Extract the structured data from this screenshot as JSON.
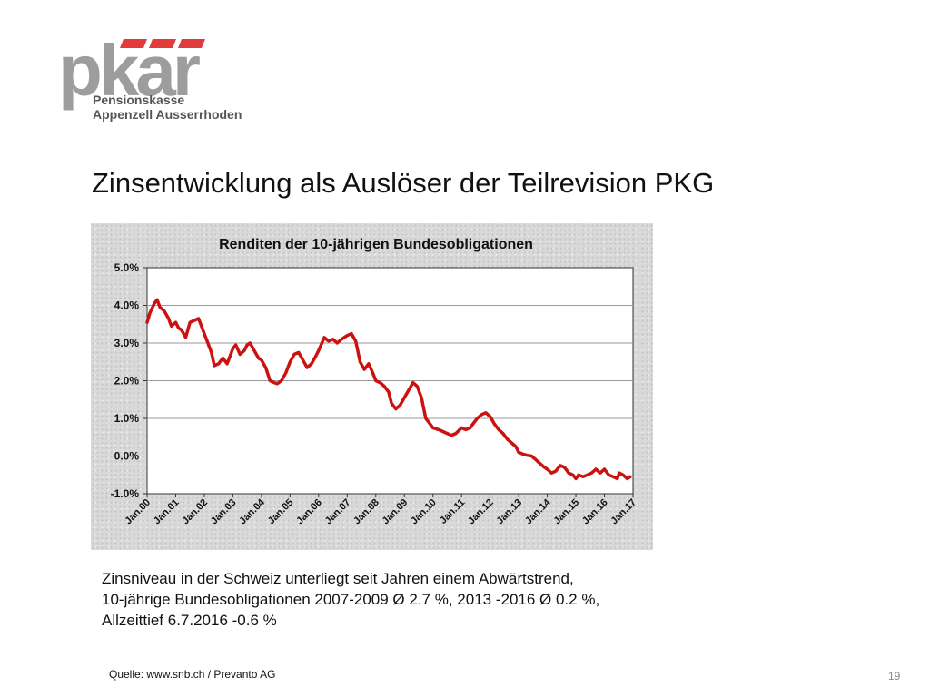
{
  "logo": {
    "wordmark": "pkar",
    "line1": "Pensionskasse",
    "line2": "Appenzell Ausserrhoden",
    "gray": "#9d9d9d",
    "red": "#e23b3b"
  },
  "slide_title": "Zinsentwicklung als Auslöser der Teilrevision PKG",
  "chart_data": {
    "type": "line",
    "title": "Renditen der 10-jährigen Bundesobligationen",
    "xlabel": "",
    "ylabel": "",
    "ylim": [
      -1.0,
      5.0
    ],
    "xlim": [
      2000,
      2017
    ],
    "yticks": [
      "5.0%",
      "4.0%",
      "3.0%",
      "2.0%",
      "1.0%",
      "0.0%",
      "-1.0%"
    ],
    "ytick_values": [
      5,
      4,
      3,
      2,
      1,
      0,
      -1
    ],
    "xticks": [
      "Jan.00",
      "Jan.01",
      "Jan.02",
      "Jan.03",
      "Jan.04",
      "Jan.05",
      "Jan.06",
      "Jan.07",
      "Jan.08",
      "Jan.09",
      "Jan.10",
      "Jan.11",
      "Jan.12",
      "Jan.13",
      "Jan.14",
      "Jan.15",
      "Jan.16",
      "Jan.17"
    ],
    "grid": true,
    "line_color": "#cc1111",
    "series": [
      {
        "x": [
          2000.0,
          2000.1,
          2000.25,
          2000.35,
          2000.45,
          2000.6,
          2000.75,
          2000.85,
          2001.0,
          2001.1,
          2001.2,
          2001.35,
          2001.5,
          2001.65,
          2001.8,
          2001.9,
          2002.0,
          2002.1,
          2002.25,
          2002.35,
          2002.5,
          2002.65,
          2002.8,
          2002.9,
          2003.0,
          2003.1,
          2003.25,
          2003.4,
          2003.5,
          2003.6,
          2003.75,
          2003.9,
          2004.0,
          2004.15,
          2004.3,
          2004.45,
          2004.55,
          2004.7,
          2004.85,
          2005.0,
          2005.15,
          2005.3,
          2005.45,
          2005.6,
          2005.75,
          2005.9,
          2006.0,
          2006.2,
          2006.35,
          2006.5,
          2006.65,
          2006.8,
          2007.0,
          2007.15,
          2007.3,
          2007.45,
          2007.6,
          2007.75,
          2007.9,
          2008.0,
          2008.15,
          2008.3,
          2008.45,
          2008.55,
          2008.7,
          2008.85,
          2009.0,
          2009.15,
          2009.3,
          2009.45,
          2009.6,
          2009.75,
          2009.9,
          2010.0,
          2010.2,
          2010.35,
          2010.5,
          2010.65,
          2010.8,
          2011.0,
          2011.15,
          2011.3,
          2011.45,
          2011.55,
          2011.7,
          2011.85,
          2012.0,
          2012.15,
          2012.3,
          2012.45,
          2012.6,
          2012.75,
          2012.9,
          2013.0,
          2013.15,
          2013.3,
          2013.45,
          2013.6,
          2013.75,
          2013.9,
          2014.0,
          2014.15,
          2014.3,
          2014.45,
          2014.6,
          2014.75,
          2014.9,
          2015.0,
          2015.1,
          2015.25,
          2015.4,
          2015.55,
          2015.7,
          2015.85,
          2016.0,
          2016.15,
          2016.3,
          2016.45,
          2016.52,
          2016.65,
          2016.8,
          2016.9
        ],
        "y": [
          3.55,
          3.8,
          4.05,
          4.15,
          3.95,
          3.85,
          3.65,
          3.45,
          3.55,
          3.4,
          3.35,
          3.15,
          3.55,
          3.6,
          3.65,
          3.45,
          3.25,
          3.05,
          2.75,
          2.4,
          2.45,
          2.6,
          2.45,
          2.65,
          2.85,
          2.95,
          2.7,
          2.8,
          2.95,
          3.0,
          2.8,
          2.6,
          2.55,
          2.35,
          2.0,
          1.95,
          1.92,
          2.0,
          2.2,
          2.5,
          2.7,
          2.75,
          2.55,
          2.35,
          2.45,
          2.65,
          2.8,
          3.15,
          3.05,
          3.1,
          3.0,
          3.1,
          3.2,
          3.25,
          3.05,
          2.5,
          2.3,
          2.45,
          2.2,
          2.0,
          1.95,
          1.85,
          1.7,
          1.4,
          1.25,
          1.35,
          1.55,
          1.75,
          1.95,
          1.85,
          1.55,
          1.0,
          0.85,
          0.75,
          0.7,
          0.65,
          0.6,
          0.55,
          0.6,
          0.75,
          0.7,
          0.75,
          0.9,
          1.0,
          1.1,
          1.15,
          1.05,
          0.85,
          0.7,
          0.6,
          0.45,
          0.35,
          0.25,
          0.1,
          0.05,
          0.02,
          0.0,
          -0.1,
          -0.2,
          -0.3,
          -0.35,
          -0.45,
          -0.4,
          -0.25,
          -0.3,
          -0.45,
          -0.5,
          -0.6,
          -0.5,
          -0.55,
          -0.5,
          -0.45,
          -0.35,
          -0.45,
          -0.35,
          -0.5,
          -0.55,
          -0.6,
          -0.45,
          -0.5,
          -0.6,
          -0.55
        ]
      }
    ]
  },
  "body_lines": [
    "Zinsniveau in der Schweiz unterliegt seit Jahren einem Abwärtstrend,",
    "10-jährige Bundesobligationen 2007-2009  Ø 2.7 %, 2013 -2016  Ø 0.2 %,",
    "Allzeittief 6.7.2016  -0.6 %"
  ],
  "source": "Quelle: www.snb.ch / Prevanto AG",
  "page_number": "19"
}
